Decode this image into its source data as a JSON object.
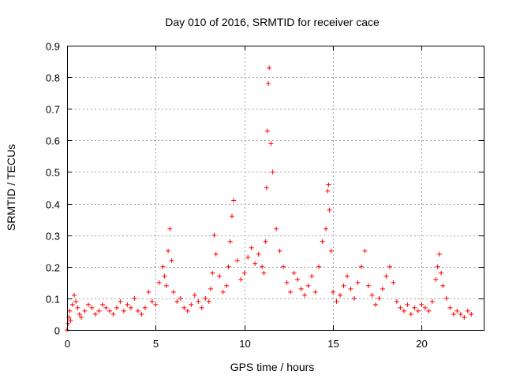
{
  "chart_data": {
    "type": "scatter",
    "title": "Day 010 of 2016, SRMTID for receiver cace",
    "xlabel": "GPS time / hours",
    "ylabel": "SRMTID / TECUs",
    "xlim": [
      0,
      23.5
    ],
    "ylim": [
      0,
      0.9
    ],
    "xticks": [
      0,
      5,
      10,
      15,
      20
    ],
    "yticks": [
      0,
      0.1,
      0.2,
      0.3,
      0.4,
      0.5,
      0.6,
      0.7,
      0.8,
      0.9
    ],
    "xtick_labels": [
      "0",
      "5",
      "10",
      "15",
      "20"
    ],
    "ytick_labels": [
      "0",
      "0.1",
      "0.2",
      "0.3",
      "0.4",
      "0.5",
      "0.6",
      "0.7",
      "0.8",
      "0.9"
    ],
    "grid": true,
    "marker": "+",
    "series": [
      {
        "name": "SRMTID",
        "color": "#ff0000",
        "x": [
          0.0,
          0.05,
          0.1,
          0.15,
          0.2,
          0.3,
          0.4,
          0.5,
          0.6,
          0.7,
          0.8,
          1.0,
          1.2,
          1.4,
          1.6,
          1.8,
          2.0,
          2.2,
          2.4,
          2.6,
          2.8,
          3.0,
          3.2,
          3.4,
          3.6,
          3.8,
          4.0,
          4.2,
          4.4,
          4.6,
          4.8,
          5.0,
          5.2,
          5.4,
          5.5,
          5.6,
          5.7,
          5.8,
          5.9,
          6.0,
          6.2,
          6.4,
          6.6,
          6.8,
          7.0,
          7.2,
          7.4,
          7.6,
          7.8,
          8.0,
          8.1,
          8.2,
          8.3,
          8.4,
          8.6,
          8.8,
          9.0,
          9.1,
          9.2,
          9.3,
          9.4,
          9.6,
          9.8,
          10.0,
          10.2,
          10.4,
          10.6,
          10.8,
          11.0,
          11.1,
          11.2,
          11.25,
          11.3,
          11.35,
          11.4,
          11.5,
          11.6,
          11.8,
          12.0,
          12.2,
          12.4,
          12.6,
          12.8,
          13.0,
          13.2,
          13.4,
          13.6,
          13.8,
          14.0,
          14.2,
          14.4,
          14.6,
          14.7,
          14.75,
          14.8,
          14.9,
          15.0,
          15.2,
          15.4,
          15.6,
          15.8,
          16.0,
          16.2,
          16.4,
          16.6,
          16.8,
          17.0,
          17.2,
          17.4,
          17.6,
          17.8,
          18.0,
          18.2,
          18.4,
          18.6,
          18.8,
          19.0,
          19.2,
          19.4,
          19.6,
          19.8,
          20.0,
          20.2,
          20.4,
          20.6,
          20.8,
          20.9,
          21.0,
          21.1,
          21.2,
          21.4,
          21.6,
          21.8,
          22.0,
          22.2,
          22.4,
          22.6,
          22.8
        ],
        "y": [
          0.0,
          0.02,
          0.04,
          0.06,
          0.03,
          0.08,
          0.11,
          0.09,
          0.07,
          0.05,
          0.04,
          0.06,
          0.08,
          0.07,
          0.05,
          0.06,
          0.08,
          0.07,
          0.06,
          0.05,
          0.07,
          0.09,
          0.06,
          0.08,
          0.07,
          0.1,
          0.06,
          0.05,
          0.07,
          0.12,
          0.09,
          0.08,
          0.15,
          0.2,
          0.17,
          0.14,
          0.25,
          0.32,
          0.22,
          0.12,
          0.09,
          0.1,
          0.07,
          0.06,
          0.08,
          0.11,
          0.09,
          0.07,
          0.1,
          0.09,
          0.13,
          0.18,
          0.3,
          0.24,
          0.17,
          0.12,
          0.14,
          0.2,
          0.28,
          0.36,
          0.41,
          0.22,
          0.16,
          0.18,
          0.23,
          0.26,
          0.21,
          0.24,
          0.2,
          0.18,
          0.28,
          0.45,
          0.63,
          0.78,
          0.83,
          0.59,
          0.5,
          0.32,
          0.25,
          0.2,
          0.15,
          0.12,
          0.18,
          0.16,
          0.13,
          0.11,
          0.14,
          0.17,
          0.12,
          0.2,
          0.28,
          0.32,
          0.44,
          0.46,
          0.38,
          0.25,
          0.12,
          0.09,
          0.11,
          0.14,
          0.17,
          0.13,
          0.1,
          0.15,
          0.2,
          0.25,
          0.14,
          0.11,
          0.08,
          0.1,
          0.13,
          0.17,
          0.2,
          0.15,
          0.09,
          0.07,
          0.06,
          0.08,
          0.05,
          0.07,
          0.06,
          0.08,
          0.07,
          0.06,
          0.09,
          0.16,
          0.2,
          0.24,
          0.18,
          0.14,
          0.1,
          0.07,
          0.05,
          0.06,
          0.05,
          0.04,
          0.06,
          0.05
        ]
      }
    ]
  }
}
